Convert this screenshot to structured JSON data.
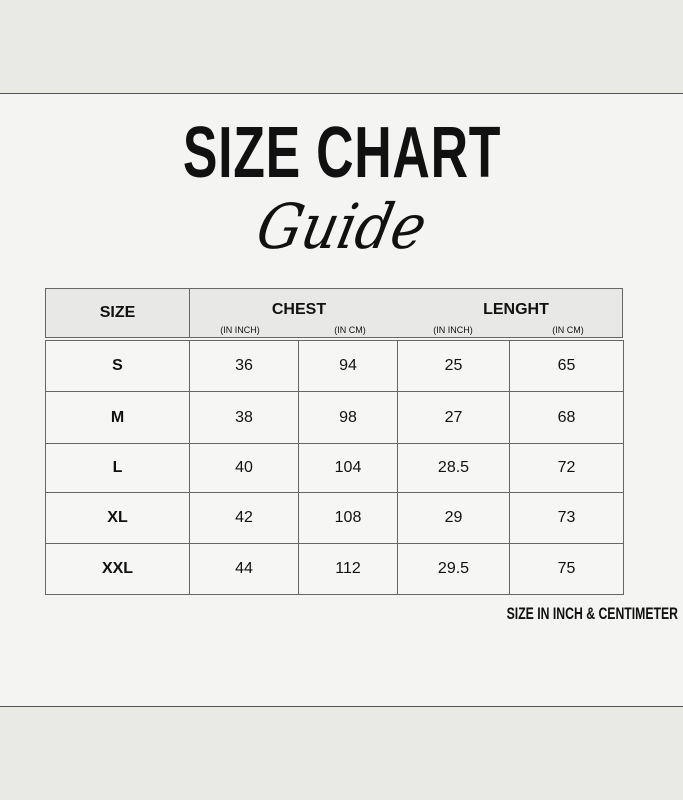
{
  "title": "SIZE CHART",
  "subtitle": "Guide",
  "table": {
    "size_header": "SIZE",
    "groups": [
      {
        "label": "CHEST",
        "units": [
          "(IN INCH)",
          "(IN CM)"
        ]
      },
      {
        "label": "LENGHT",
        "units": [
          "(IN INCH)",
          "(IN CM)"
        ]
      }
    ],
    "rows": [
      [
        "S",
        "36",
        "94",
        "25",
        "65"
      ],
      [
        "M",
        "38",
        "98",
        "27",
        "68"
      ],
      [
        "L",
        "40",
        "104",
        "28.5",
        "72"
      ],
      [
        "XL",
        "42",
        "108",
        "29",
        "73"
      ],
      [
        "XXL",
        "44",
        "112",
        "29.5",
        "75"
      ]
    ]
  },
  "footnote": "SIZE IN INCH & CENTIMETER"
}
